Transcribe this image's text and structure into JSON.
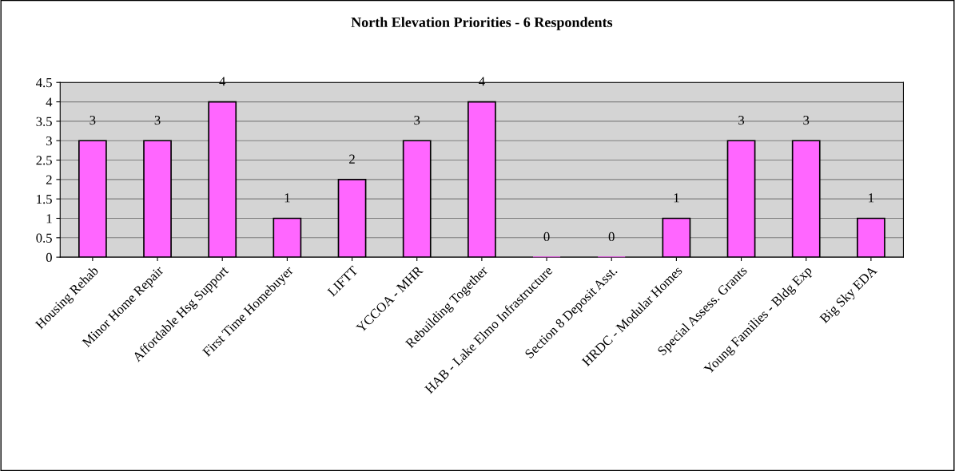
{
  "chart_data": {
    "type": "bar",
    "title": "North Elevation Priorities - 6 Respondents",
    "categories": [
      "Housing Rehab",
      "Minor Home Repair",
      "Affordable Hsg Support",
      "First Time Homebuyer",
      "LIFTT",
      "YCCOA - MHR",
      "Rebuilding Together",
      "HAB - Lake Elmo Infrastructure",
      "Section 8 Deposit Asst.",
      "HRDC - Modular Homes",
      "Special Assess. Grants",
      "Young Families - Bldg Exp",
      "Big Sky EDA"
    ],
    "values": [
      3,
      3,
      4,
      1,
      2,
      3,
      4,
      0,
      0,
      1,
      3,
      3,
      1
    ],
    "color": "#ff66ff",
    "ylim": [
      0,
      4.5
    ],
    "yticks": [
      0,
      0.5,
      1,
      1.5,
      2,
      2.5,
      3,
      3.5,
      4,
      4.5
    ],
    "grid": "y",
    "data_labels": true,
    "legend": false
  }
}
